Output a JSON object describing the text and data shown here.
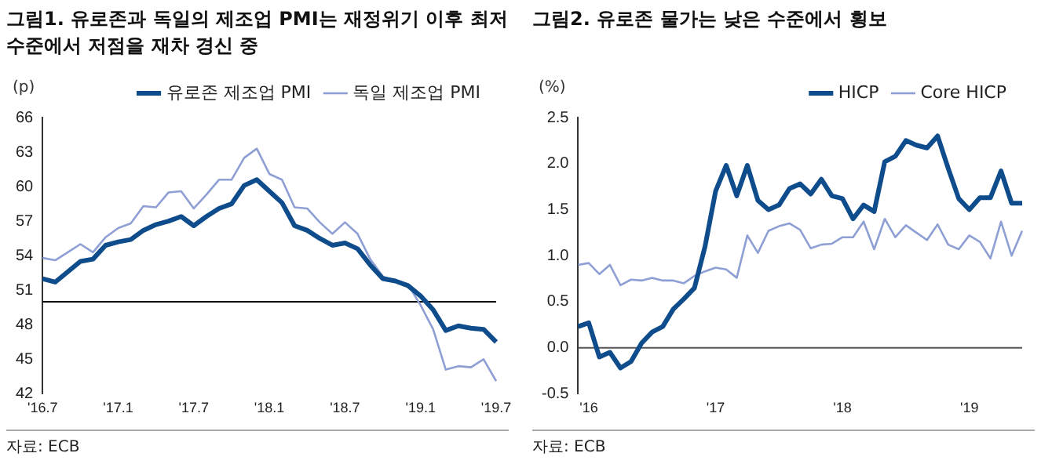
{
  "chart_data": [
    {
      "type": "line",
      "title": "그림1. 유로존과 독일의 제조업 PMI는 재정위기 이후 최저 수준에서 저점을 재차 경신 중",
      "ylabel": "(p)",
      "annotations": [
        "자료: ECB"
      ],
      "categories": [
        "'16.7",
        null,
        null,
        null,
        null,
        null,
        "'17.1",
        null,
        null,
        null,
        null,
        null,
        "'17.7",
        null,
        null,
        null,
        null,
        null,
        "'18.1",
        null,
        null,
        null,
        null,
        null,
        "'18.7",
        null,
        null,
        null,
        null,
        null,
        "'19.1",
        null,
        null,
        null,
        null,
        null,
        "'19.7"
      ],
      "series": [
        {
          "name": "유로존 제조업 PMI",
          "color": "#0f4c8c",
          "values": [
            52.0,
            51.7,
            52.6,
            53.5,
            53.7,
            54.9,
            55.2,
            55.4,
            56.2,
            56.7,
            57.0,
            57.4,
            56.6,
            57.4,
            58.1,
            58.5,
            60.1,
            60.6,
            59.6,
            58.6,
            56.6,
            56.2,
            55.5,
            54.9,
            55.1,
            54.6,
            53.2,
            52.0,
            51.8,
            51.4,
            50.5,
            49.3,
            47.5,
            47.9,
            47.7,
            47.6,
            46.5
          ]
        },
        {
          "name": "독일 제조업 PMI",
          "color": "#8e9fd4",
          "values": [
            53.8,
            53.6,
            54.3,
            55.0,
            54.3,
            55.6,
            56.4,
            56.8,
            58.3,
            58.2,
            59.5,
            59.6,
            58.1,
            59.3,
            60.6,
            60.6,
            62.5,
            63.3,
            61.1,
            60.6,
            58.2,
            58.1,
            56.9,
            55.9,
            56.9,
            55.9,
            53.7,
            52.2,
            51.8,
            51.5,
            49.7,
            47.6,
            44.1,
            44.4,
            44.3,
            45.0,
            43.1
          ]
        }
      ],
      "ylim": [
        42,
        66
      ],
      "yticks": [
        42,
        45,
        48,
        51,
        54,
        57,
        60,
        63,
        66
      ],
      "ref_lines": [
        {
          "axis": "y",
          "value": 50,
          "color": "#000000"
        }
      ],
      "grid": false,
      "legend": "top",
      "marker": "none",
      "line_style": "solid"
    },
    {
      "type": "line",
      "title": "그림2. 유로존 물가는 낮은 수준에서 횡보",
      "ylabel": "(%)",
      "annotations": [
        "자료: ECB"
      ],
      "categories": [
        null,
        "'16",
        null,
        null,
        null,
        null,
        null,
        null,
        null,
        null,
        null,
        null,
        null,
        "'17",
        null,
        null,
        null,
        null,
        null,
        null,
        null,
        null,
        null,
        null,
        null,
        "'18",
        null,
        null,
        null,
        null,
        null,
        null,
        null,
        null,
        null,
        null,
        null,
        "'19",
        null,
        null,
        null,
        null,
        null
      ],
      "series": [
        {
          "name": "HICP",
          "color": "#0f4c8c",
          "values": [
            0.23,
            0.27,
            -0.1,
            -0.05,
            -0.22,
            -0.15,
            0.05,
            0.17,
            0.23,
            0.42,
            0.53,
            0.65,
            1.1,
            1.7,
            1.98,
            1.65,
            1.98,
            1.6,
            1.5,
            1.55,
            1.73,
            1.78,
            1.67,
            1.83,
            1.65,
            1.62,
            1.4,
            1.55,
            1.48,
            2.02,
            2.08,
            2.25,
            2.2,
            2.17,
            2.3,
            1.95,
            1.62,
            1.5,
            1.63,
            1.63,
            1.92,
            1.57,
            1.57
          ]
        },
        {
          "name": "Core HICP",
          "color": "#8e9fd4",
          "values": [
            0.9,
            0.92,
            0.8,
            0.9,
            0.68,
            0.74,
            0.73,
            0.76,
            0.73,
            0.73,
            0.7,
            0.78,
            0.83,
            0.87,
            0.85,
            0.76,
            1.22,
            1.03,
            1.27,
            1.32,
            1.35,
            1.28,
            1.08,
            1.12,
            1.13,
            1.2,
            1.2,
            1.37,
            1.07,
            1.4,
            1.2,
            1.33,
            1.25,
            1.17,
            1.34,
            1.12,
            1.07,
            1.22,
            1.15,
            0.97,
            1.37,
            1.0,
            1.27
          ]
        }
      ],
      "ylim": [
        -0.5,
        2.5
      ],
      "yticks": [
        {
          "value": -0.5,
          "label": "-0.5"
        },
        {
          "value": 0,
          "label": "0.0"
        },
        {
          "value": 0.5,
          "label": "0.5"
        },
        {
          "value": 1,
          "label": "1.0"
        },
        {
          "value": 1.5,
          "label": "1.5"
        },
        {
          "value": 2,
          "label": "2.0"
        },
        {
          "value": 2.5,
          "label": "2.5"
        }
      ],
      "ref_lines": [
        {
          "axis": "y",
          "value": 0,
          "color": "#555555"
        }
      ],
      "grid": false,
      "legend": "top",
      "marker": "none",
      "line_style": "solid"
    }
  ]
}
